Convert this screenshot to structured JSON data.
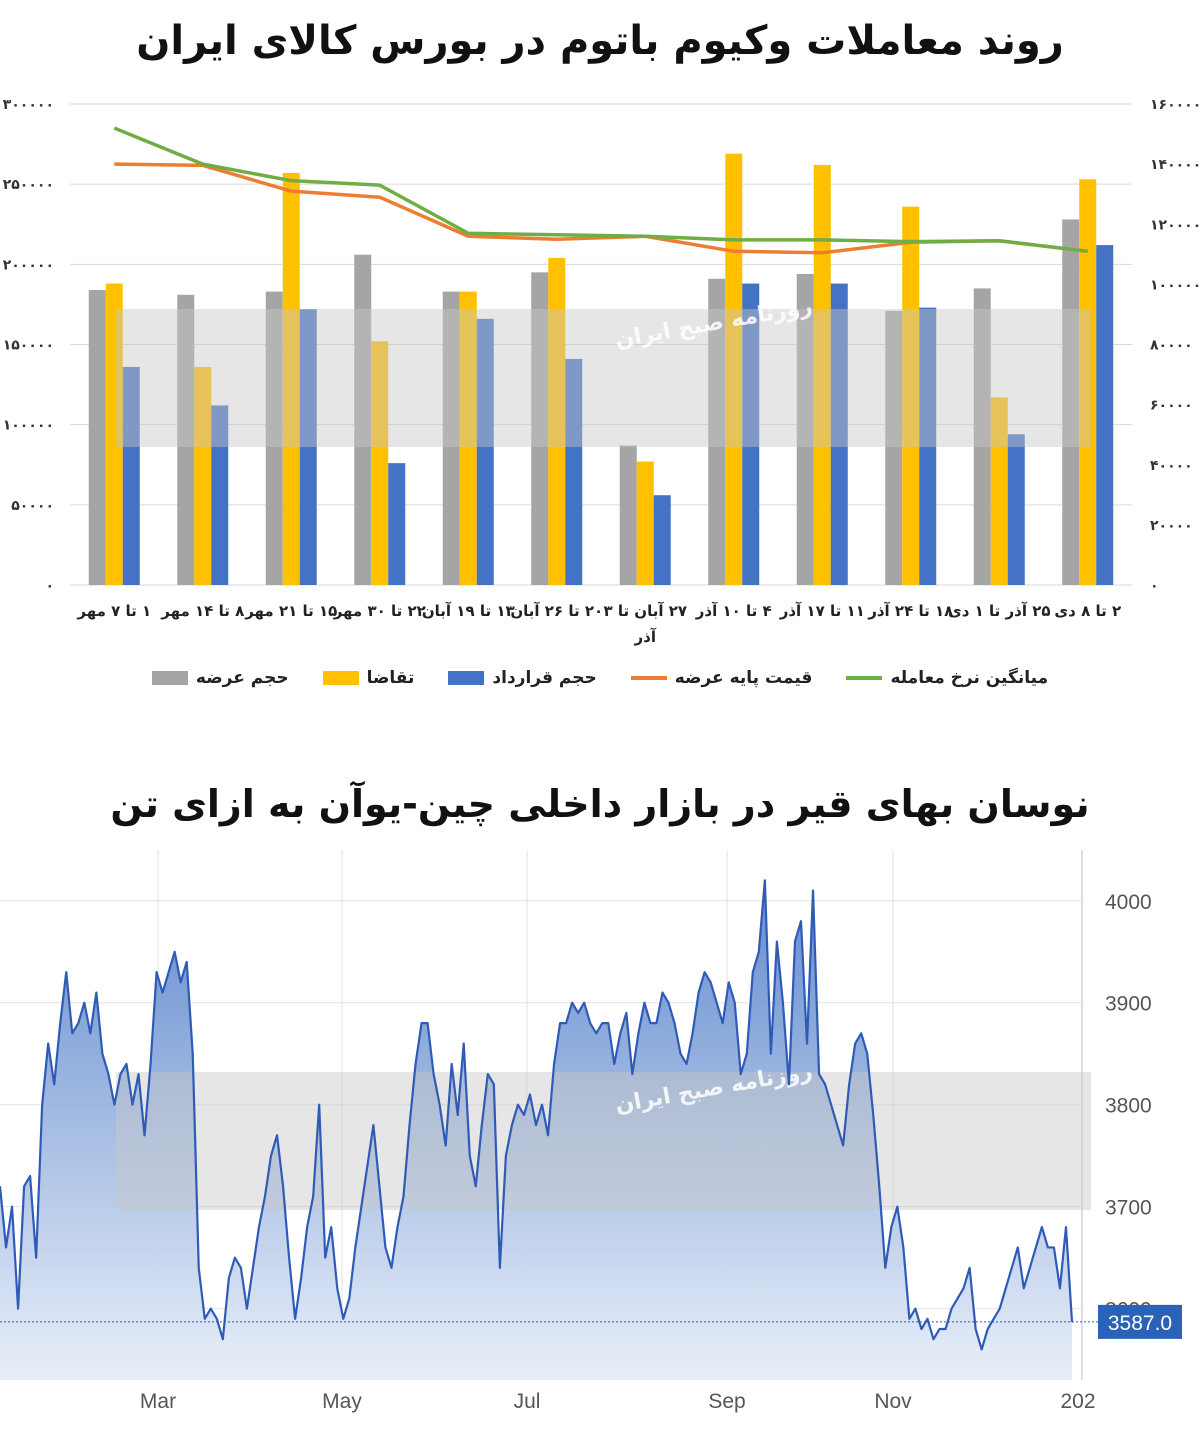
{
  "colors": {
    "supply": "#A5A5A5",
    "demand": "#FFC000",
    "contract": "#4472C4",
    "base_price": "#ED7D31",
    "avg_rate": "#70AD47",
    "line2": "#2F5BB7",
    "area_top": "#5B86CC",
    "area_bottom": "#E8EEF8",
    "watermark_band": "#C8C8C8"
  },
  "watermark": {
    "text": "روزنامه صبح ایران"
  },
  "chart_data": [
    {
      "type": "bar",
      "title": "روند معاملات وکیوم باتوم در بورس کالای ایران",
      "categories": [
        "۱ تا ۷ مهر",
        "۸ تا ۱۴ مهر",
        "۱۵ تا ۲۱ مهر",
        "۲۲ تا ۳۰ مهر",
        "۱۳ تا ۱۹ آبان",
        "۲۰ تا ۲۶ آبان",
        "۲۷ آبان تا ۳ آذر",
        "۴ تا ۱۰ آذر",
        "۱۱ تا ۱۷ آذر",
        "۱۸ تا ۲۴ آذر",
        "۲۵ آذر تا ۱ دی",
        "۲ تا ۸ دی"
      ],
      "left_ticks": [
        "۰",
        "۵۰۰۰۰",
        "۱۰۰۰۰۰",
        "۱۵۰۰۰۰",
        "۲۰۰۰۰۰",
        "۲۵۰۰۰۰",
        "۳۰۰۰۰۰"
      ],
      "right_ticks": [
        "۰",
        "۲۰۰۰۰",
        "۴۰۰۰۰",
        "۶۰۰۰۰",
        "۸۰۰۰۰",
        "۱۰۰۰۰۰",
        "۱۲۰۰۰۰",
        "۱۴۰۰۰۰",
        "۱۶۰۰۰۰"
      ],
      "ylim_left": [
        0,
        300000
      ],
      "ylim_right": [
        0,
        160000
      ],
      "grid": true,
      "legend_position": "bottom",
      "series": [
        {
          "name": "حجم عرضه",
          "type": "bar",
          "axis": "left",
          "values": [
            184000,
            181000,
            183000,
            206000,
            183000,
            195000,
            87000,
            191000,
            194000,
            171000,
            185000,
            228000
          ]
        },
        {
          "name": "تقاضا",
          "type": "bar",
          "axis": "left",
          "values": [
            188000,
            136000,
            257000,
            152000,
            183000,
            204000,
            77000,
            269000,
            262000,
            236000,
            117000,
            253000
          ]
        },
        {
          "name": "حجم قرارداد",
          "type": "bar",
          "axis": "left",
          "values": [
            136000,
            112000,
            172000,
            76000,
            166000,
            141000,
            56000,
            188000,
            188000,
            173000,
            94000,
            212000
          ]
        },
        {
          "name": "قیمت پایه عرضه",
          "type": "line",
          "axis": "right",
          "values": [
            140000,
            139600,
            131000,
            129000,
            116000,
            115000,
            116000,
            111000,
            110500,
            114000,
            114500,
            111000
          ]
        },
        {
          "name": "میانگین نرخ معامله",
          "type": "line",
          "axis": "right",
          "values": [
            152000,
            140000,
            134500,
            133000,
            117000,
            116500,
            116000,
            114800,
            114800,
            114200,
            114500,
            111000
          ]
        }
      ]
    },
    {
      "type": "area",
      "title": "نوسان بهای قیر در بازار داخلی چین-یوآن به ازای تن",
      "x_ticks": [
        "Mar",
        "May",
        "Jul",
        "Sep",
        "Nov",
        "202"
      ],
      "y_ticks": [
        "3600",
        "3700",
        "3800",
        "3900",
        "4000"
      ],
      "ylim": [
        3530,
        4040
      ],
      "last_value": "3587.0",
      "grid": true,
      "values": [
        3720,
        3660,
        3700,
        3600,
        3720,
        3730,
        3650,
        3800,
        3860,
        3820,
        3880,
        3930,
        3870,
        3880,
        3900,
        3870,
        3910,
        3850,
        3830,
        3800,
        3830,
        3840,
        3800,
        3830,
        3770,
        3840,
        3930,
        3910,
        3930,
        3950,
        3920,
        3940,
        3850,
        3640,
        3590,
        3600,
        3590,
        3570,
        3630,
        3650,
        3640,
        3600,
        3640,
        3680,
        3710,
        3750,
        3770,
        3720,
        3650,
        3590,
        3630,
        3680,
        3710,
        3800,
        3650,
        3680,
        3620,
        3590,
        3610,
        3660,
        3700,
        3740,
        3780,
        3720,
        3660,
        3640,
        3680,
        3710,
        3780,
        3840,
        3880,
        3880,
        3830,
        3800,
        3760,
        3840,
        3790,
        3860,
        3750,
        3720,
        3780,
        3830,
        3820,
        3640,
        3750,
        3780,
        3800,
        3790,
        3810,
        3780,
        3800,
        3770,
        3840,
        3880,
        3880,
        3900,
        3890,
        3900,
        3880,
        3870,
        3880,
        3880,
        3840,
        3870,
        3890,
        3830,
        3870,
        3900,
        3880,
        3880,
        3910,
        3900,
        3880,
        3850,
        3840,
        3870,
        3910,
        3930,
        3920,
        3900,
        3880,
        3920,
        3900,
        3830,
        3850,
        3930,
        3950,
        4020,
        3850,
        3960,
        3900,
        3820,
        3960,
        3980,
        3860,
        4010,
        3830,
        3820,
        3800,
        3780,
        3760,
        3820,
        3860,
        3870,
        3850,
        3790,
        3720,
        3640,
        3680,
        3700,
        3660,
        3590,
        3600,
        3580,
        3590,
        3570,
        3580,
        3580,
        3600,
        3610,
        3620,
        3640,
        3580,
        3560,
        3580,
        3590,
        3600,
        3620,
        3640,
        3660,
        3620,
        3640,
        3660,
        3680,
        3660,
        3660,
        3620,
        3680,
        3587
      ]
    }
  ]
}
